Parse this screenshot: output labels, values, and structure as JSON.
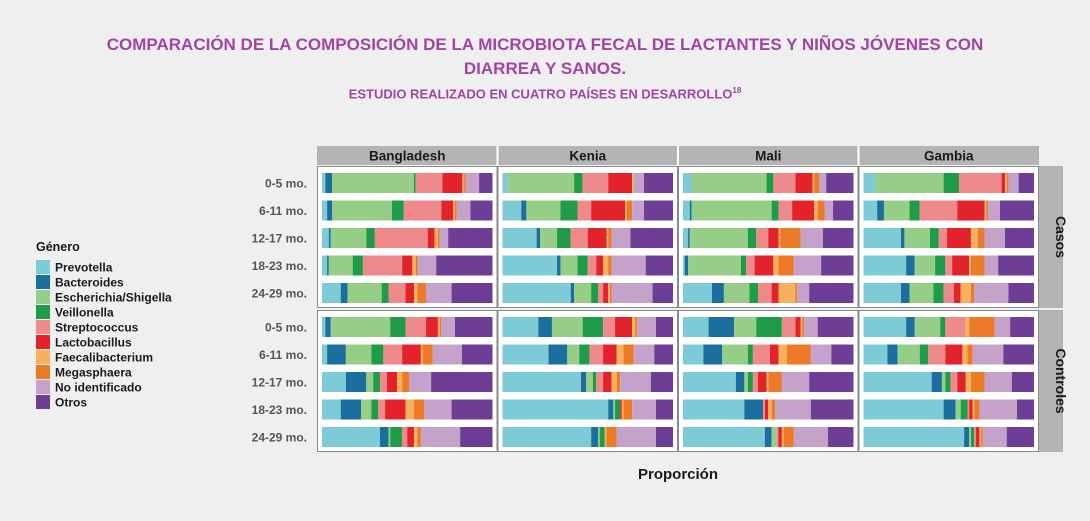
{
  "title_line1": "COMPARACIÓN DE LA COMPOSICIÓN DE LA MICROBIOTA FECAL DE LACTANTES Y NIÑOS JÓVENES CON",
  "title_line2": "DIARREA Y SANOS.",
  "subtitle": "ESTUDIO REALIZADO EN CUATRO PAÍSES EN DESARROLLO",
  "subtitle_ref": "18",
  "chart_data": {
    "type": "bar",
    "stacked": true,
    "normalized": true,
    "xlabel": "Proporción",
    "countries": [
      "Bangladesh",
      "Kenia",
      "Mali",
      "Gambia"
    ],
    "groups": [
      "Casos",
      "Controles"
    ],
    "age_groups": [
      "0-5 mo.",
      "6-11 mo.",
      "12-17 mo.",
      "18-23 mo.",
      "24-29 mo."
    ],
    "legend_title": "Género",
    "legend_placement": "left",
    "genera": [
      "Prevotella",
      "Bacteroides",
      "Escherichia/Shigella",
      "Veillonella",
      "Streptococcus",
      "Lactobacillus",
      "Faecalibacterium",
      "Megasphaera",
      "No identificado",
      "Otros"
    ],
    "colors": [
      "#7ecbd8",
      "#1a6f9f",
      "#96cd87",
      "#1f9c4a",
      "#ee8a8c",
      "#e3232b",
      "#f6b15d",
      "#ec7a26",
      "#c5a2c9",
      "#6e3d95"
    ],
    "values": {
      "Casos": {
        "Bangladesh": [
          [
            2,
            4,
            49,
            1,
            16,
            12,
            1,
            1,
            8,
            8
          ],
          [
            3,
            3,
            35,
            7,
            22,
            7,
            1,
            1,
            8,
            13
          ],
          [
            4,
            1,
            21,
            5,
            31,
            4,
            2,
            1,
            5,
            26
          ],
          [
            3,
            1,
            14,
            6,
            23,
            6,
            2,
            1,
            11,
            33
          ],
          [
            11,
            4,
            20,
            4,
            10,
            5,
            2,
            5,
            15,
            24
          ]
        ],
        "Kenia": [
          [
            3,
            0,
            39,
            5,
            15,
            14,
            1,
            0,
            6,
            17
          ],
          [
            11,
            3,
            20,
            10,
            8,
            20,
            1,
            3,
            7,
            17
          ],
          [
            20,
            2,
            10,
            8,
            10,
            11,
            1,
            2,
            11,
            25
          ],
          [
            32,
            2,
            10,
            6,
            5,
            4,
            3,
            2,
            20,
            16
          ],
          [
            40,
            2,
            10,
            4,
            3,
            3,
            1,
            1,
            24,
            12
          ]
        ],
        "Mali": [
          [
            5,
            0,
            44,
            4,
            13,
            10,
            1,
            3,
            4,
            16
          ],
          [
            4,
            1,
            47,
            4,
            8,
            13,
            2,
            4,
            5,
            12
          ],
          [
            3,
            1,
            34,
            5,
            7,
            6,
            1,
            12,
            13,
            18
          ],
          [
            1,
            2,
            31,
            3,
            5,
            11,
            3,
            9,
            16,
            19
          ],
          [
            17,
            7,
            15,
            5,
            8,
            4,
            10,
            1,
            7,
            26
          ]
        ],
        "Gambia": [
          [
            7,
            0,
            40,
            9,
            25,
            2,
            1,
            1,
            6,
            9
          ],
          [
            8,
            4,
            15,
            6,
            22,
            16,
            1,
            1,
            7,
            20
          ],
          [
            22,
            2,
            15,
            5,
            5,
            14,
            4,
            4,
            12,
            17
          ],
          [
            25,
            5,
            12,
            6,
            4,
            10,
            1,
            8,
            8,
            21
          ],
          [
            22,
            5,
            14,
            6,
            6,
            4,
            6,
            2,
            20,
            15
          ]
        ]
      },
      "Controles": {
        "Bangladesh": [
          [
            2,
            3,
            35,
            9,
            12,
            7,
            1,
            1,
            8,
            22
          ],
          [
            3,
            11,
            15,
            7,
            11,
            11,
            1,
            6,
            17,
            18
          ],
          [
            14,
            12,
            4,
            4,
            4,
            6,
            3,
            4,
            13,
            36
          ],
          [
            11,
            12,
            6,
            4,
            4,
            12,
            5,
            6,
            16,
            24
          ],
          [
            34,
            5,
            1,
            7,
            3,
            4,
            2,
            2,
            23,
            19
          ]
        ],
        "Kenia": [
          [
            21,
            8,
            18,
            12,
            7,
            10,
            2,
            1,
            11,
            10
          ],
          [
            27,
            11,
            7,
            6,
            8,
            8,
            4,
            6,
            12,
            11
          ],
          [
            46,
            3,
            4,
            2,
            4,
            5,
            3,
            2,
            18,
            13
          ],
          [
            62,
            3,
            1,
            3,
            0,
            1,
            1,
            5,
            14,
            10
          ],
          [
            52,
            4,
            1,
            3,
            0,
            0,
            1,
            6,
            23,
            10
          ]
        ],
        "Mali": [
          [
            15,
            15,
            13,
            15,
            8,
            3,
            1,
            1,
            8,
            21
          ],
          [
            12,
            11,
            15,
            3,
            10,
            5,
            5,
            14,
            12,
            13
          ],
          [
            31,
            5,
            2,
            3,
            3,
            5,
            1,
            8,
            16,
            26
          ],
          [
            36,
            11,
            0,
            0,
            1,
            2,
            2,
            2,
            21,
            25
          ],
          [
            48,
            4,
            3,
            0,
            1,
            2,
            1,
            6,
            20,
            15
          ]
        ],
        "Gambia": [
          [
            25,
            5,
            15,
            3,
            12,
            0,
            2,
            15,
            9,
            14
          ],
          [
            14,
            6,
            13,
            5,
            10,
            10,
            3,
            3,
            18,
            18
          ],
          [
            40,
            6,
            2,
            3,
            4,
            5,
            3,
            8,
            16,
            13
          ],
          [
            47,
            7,
            3,
            4,
            1,
            2,
            1,
            3,
            22,
            10
          ],
          [
            59,
            3,
            1,
            2,
            1,
            2,
            1,
            1,
            14,
            16
          ]
        ]
      }
    }
  }
}
